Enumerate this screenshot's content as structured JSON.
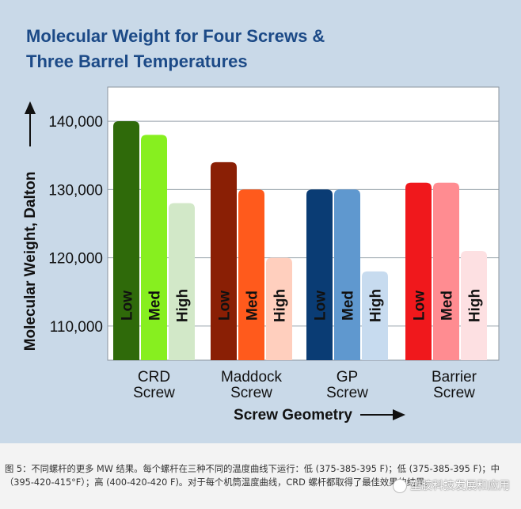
{
  "chart_data": {
    "type": "bar",
    "title_lines": [
      "Molecular Weight for Four Screws &",
      "Three Barrel Temperatures"
    ],
    "ylabel": "Molecular Weight, Dalton",
    "xlabel": "Screw Geometry",
    "ylim": [
      105000,
      145000
    ],
    "yticks": [
      110000,
      120000,
      130000,
      140000
    ],
    "ytick_labels": [
      "110,000",
      "120,000",
      "130,000",
      "140,000"
    ],
    "categories": [
      {
        "label_lines": [
          "CRD",
          "Screw"
        ]
      },
      {
        "label_lines": [
          "Maddock",
          "Screw"
        ]
      },
      {
        "label_lines": [
          "GP",
          "Screw"
        ]
      },
      {
        "label_lines": [
          "Barrier",
          "Screw"
        ]
      }
    ],
    "series": [
      {
        "name": "Low",
        "values": [
          140000,
          134000,
          130000,
          131000
        ],
        "colors": [
          "#2f6a0a",
          "#8a1f05",
          "#0a3c74",
          "#f0181c"
        ]
      },
      {
        "name": "Med",
        "values": [
          138000,
          130000,
          130000,
          131000
        ],
        "colors": [
          "#87ef1f",
          "#ff5a1c",
          "#5f98cf",
          "#ff8c91"
        ]
      },
      {
        "name": "High",
        "values": [
          128000,
          120000,
          118000,
          121000
        ],
        "colors": [
          "#d2e8c8",
          "#ffcfbe",
          "#c7dbef",
          "#fde0e2"
        ]
      }
    ]
  },
  "caption": "图 5：不同螺杆的更多 MW 结果。每个螺杆在三种不同的温度曲线下运行：低 (375-385-395 F)；低 (375-385-395 F)；中（395-420-415°F）；高 (400-420-420 F)。对于每个机筒温度曲线，CRD 螺杆都取得了最佳效果的结果。",
  "watermark": "塑胶科技发展和应用"
}
